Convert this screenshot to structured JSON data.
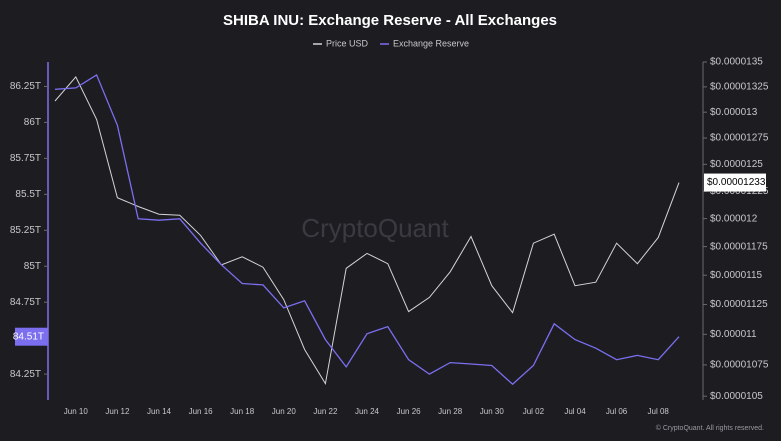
{
  "chart_data": {
    "type": "line",
    "title": "SHIBA INU: Exchange Reserve - All Exchanges",
    "watermark": "CryptoQuant",
    "footer": "© CryptoQuant. All rights reserved.",
    "categories": [
      null,
      "Jun 10",
      null,
      "Jun 12",
      null,
      "Jun 14",
      null,
      "Jun 16",
      null,
      "Jun 18",
      null,
      "Jun 20",
      null,
      "Jun 22",
      null,
      "Jun 24",
      null,
      "Jun 26",
      null,
      "Jun 28",
      null,
      "Jun 30",
      null,
      "Jul 02",
      null,
      "Jul 04",
      null,
      "Jul 06",
      null,
      "Jul 08",
      null
    ],
    "series": [
      {
        "name": "Price USD",
        "color": "#d4d4d8",
        "axis": "y2",
        "values": [
          1.311e-05,
          1.335e-05,
          1.293e-05,
          1.219e-05,
          1.211e-05,
          1.204e-05,
          1.203e-05,
          1.185e-05,
          1.159e-05,
          1.166e-05,
          1.157e-05,
          1.129e-05,
          1.0875e-05,
          1.06e-05,
          1.156e-05,
          1.169e-05,
          1.16e-05,
          1.119e-05,
          1.131e-05,
          1.153e-05,
          1.184e-05,
          1.141e-05,
          1.118e-05,
          1.178e-05,
          1.186e-05,
          1.141e-05,
          1.144e-05,
          1.178e-05,
          1.16e-05,
          1.183e-05,
          1.233e-05
        ],
        "value_labels": [
          null,
          null,
          null,
          null,
          null,
          null,
          null,
          null,
          null,
          null,
          null,
          null,
          null,
          null,
          null,
          null,
          null,
          null,
          null,
          null,
          null,
          null,
          null,
          null,
          null,
          null,
          null,
          null,
          null,
          null,
          "$0.00001233"
        ]
      },
      {
        "name": "Exchange Reserve",
        "color": "#7b6ff0",
        "axis": "y",
        "values": [
          86.23,
          86.24,
          86.33,
          85.98,
          85.33,
          85.32,
          85.33,
          85.16,
          85.01,
          84.88,
          84.87,
          84.71,
          84.76,
          84.49,
          84.3,
          84.53,
          84.58,
          84.35,
          84.25,
          84.33,
          84.32,
          84.31,
          84.18,
          84.31,
          84.6,
          84.49,
          84.43,
          84.35,
          84.38,
          84.35,
          84.51
        ],
        "value_labels": [
          null,
          null,
          null,
          null,
          null,
          null,
          null,
          null,
          null,
          null,
          null,
          null,
          null,
          null,
          null,
          null,
          null,
          null,
          null,
          null,
          null,
          null,
          null,
          null,
          null,
          null,
          null,
          null,
          null,
          null,
          "84.51T"
        ]
      }
    ],
    "ylim": [
      84.07,
      86.42
    ],
    "yticks": [
      {
        "value": 84.25,
        "label": "84.25T"
      },
      {
        "value": 84.75,
        "label": "84.75T"
      },
      {
        "value": 85,
        "label": "85T"
      },
      {
        "value": 85.25,
        "label": "85.25T"
      },
      {
        "value": 85.5,
        "label": "85.5T"
      },
      {
        "value": 85.75,
        "label": "85.75T"
      },
      {
        "value": 86,
        "label": "86T"
      },
      {
        "value": 86.25,
        "label": "86.25T"
      }
    ],
    "y2lim": [
      1.047e-05,
      1.35e-05
    ],
    "y2log": true,
    "y2ticks": [
      {
        "value": 1.05e-05,
        "label": "$0.0000105"
      },
      {
        "value": 1.075e-05,
        "label": "$0.00001075"
      },
      {
        "value": 1.1e-05,
        "label": "$0.000011"
      },
      {
        "value": 1.125e-05,
        "label": "$0.00001125"
      },
      {
        "value": 1.15e-05,
        "label": "$0.0000115"
      },
      {
        "value": 1.175e-05,
        "label": "$0.00001175"
      },
      {
        "value": 1.2e-05,
        "label": "$0.000012"
      },
      {
        "value": 1.225e-05,
        "label": "$0.00001225"
      },
      {
        "value": 1.25e-05,
        "label": "$0.0000125"
      },
      {
        "value": 1.275e-05,
        "label": "$0.00001275"
      },
      {
        "value": 1.3e-05,
        "label": "$0.000013"
      },
      {
        "value": 1.325e-05,
        "label": "$0.00001325"
      },
      {
        "value": 1.35e-05,
        "label": "$0.0000135"
      }
    ],
    "grid": false,
    "legend": "top"
  }
}
